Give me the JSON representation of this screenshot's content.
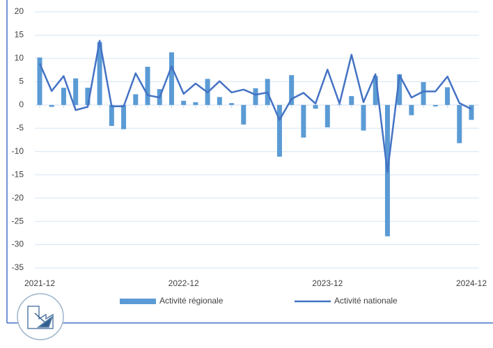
{
  "chart_data": {
    "type": "bar_line",
    "categories": [
      "2021-12",
      null,
      null,
      null,
      null,
      null,
      null,
      null,
      null,
      null,
      null,
      null,
      "2022-12",
      null,
      null,
      null,
      null,
      null,
      null,
      null,
      null,
      null,
      null,
      null,
      "2023-12",
      null,
      null,
      null,
      null,
      null,
      null,
      null,
      null,
      null,
      null,
      null,
      "2024-12"
    ],
    "series": [
      {
        "name": "Activité régionale",
        "type": "bar",
        "color": "#5b9bd5",
        "values": [
          10.2,
          -0.4,
          3.7,
          5.7,
          3.7,
          13.5,
          -4.5,
          -5.2,
          2.3,
          8.2,
          3.4,
          11.3,
          0.9,
          0.6,
          5.6,
          1.7,
          0.4,
          -4.2,
          3.6,
          5.6,
          -11.1,
          6.4,
          -7,
          -0.8,
          -4.8,
          0.1,
          1.9,
          -5.5,
          6.2,
          -28.2,
          6.6,
          -2.2,
          4.9,
          -0.3,
          3.8,
          -8.2,
          -3.2
        ]
      },
      {
        "name": "Activité nationale",
        "type": "line",
        "color": "#4472c4",
        "values": [
          8.9,
          3.0,
          6.2,
          -1.1,
          -0.4,
          13.8,
          -0.3,
          -0.3,
          6.8,
          2.1,
          1.6,
          8.3,
          2.4,
          4.6,
          2.7,
          5.1,
          2.7,
          3.3,
          2.2,
          2.7,
          -3.2,
          1.3,
          2.6,
          0.3,
          7.6,
          0.3,
          10.8,
          0.6,
          6.6,
          -14.4,
          6.4,
          1.6,
          2.9,
          2.9,
          6.1,
          0.4,
          -0.9
        ]
      }
    ],
    "ylim": [
      -35,
      20
    ],
    "yticks": [
      20,
      15,
      10,
      5,
      0,
      -5,
      -10,
      -15,
      -20,
      -25,
      -30,
      -35
    ],
    "grid": true,
    "legend": "bottom"
  }
}
